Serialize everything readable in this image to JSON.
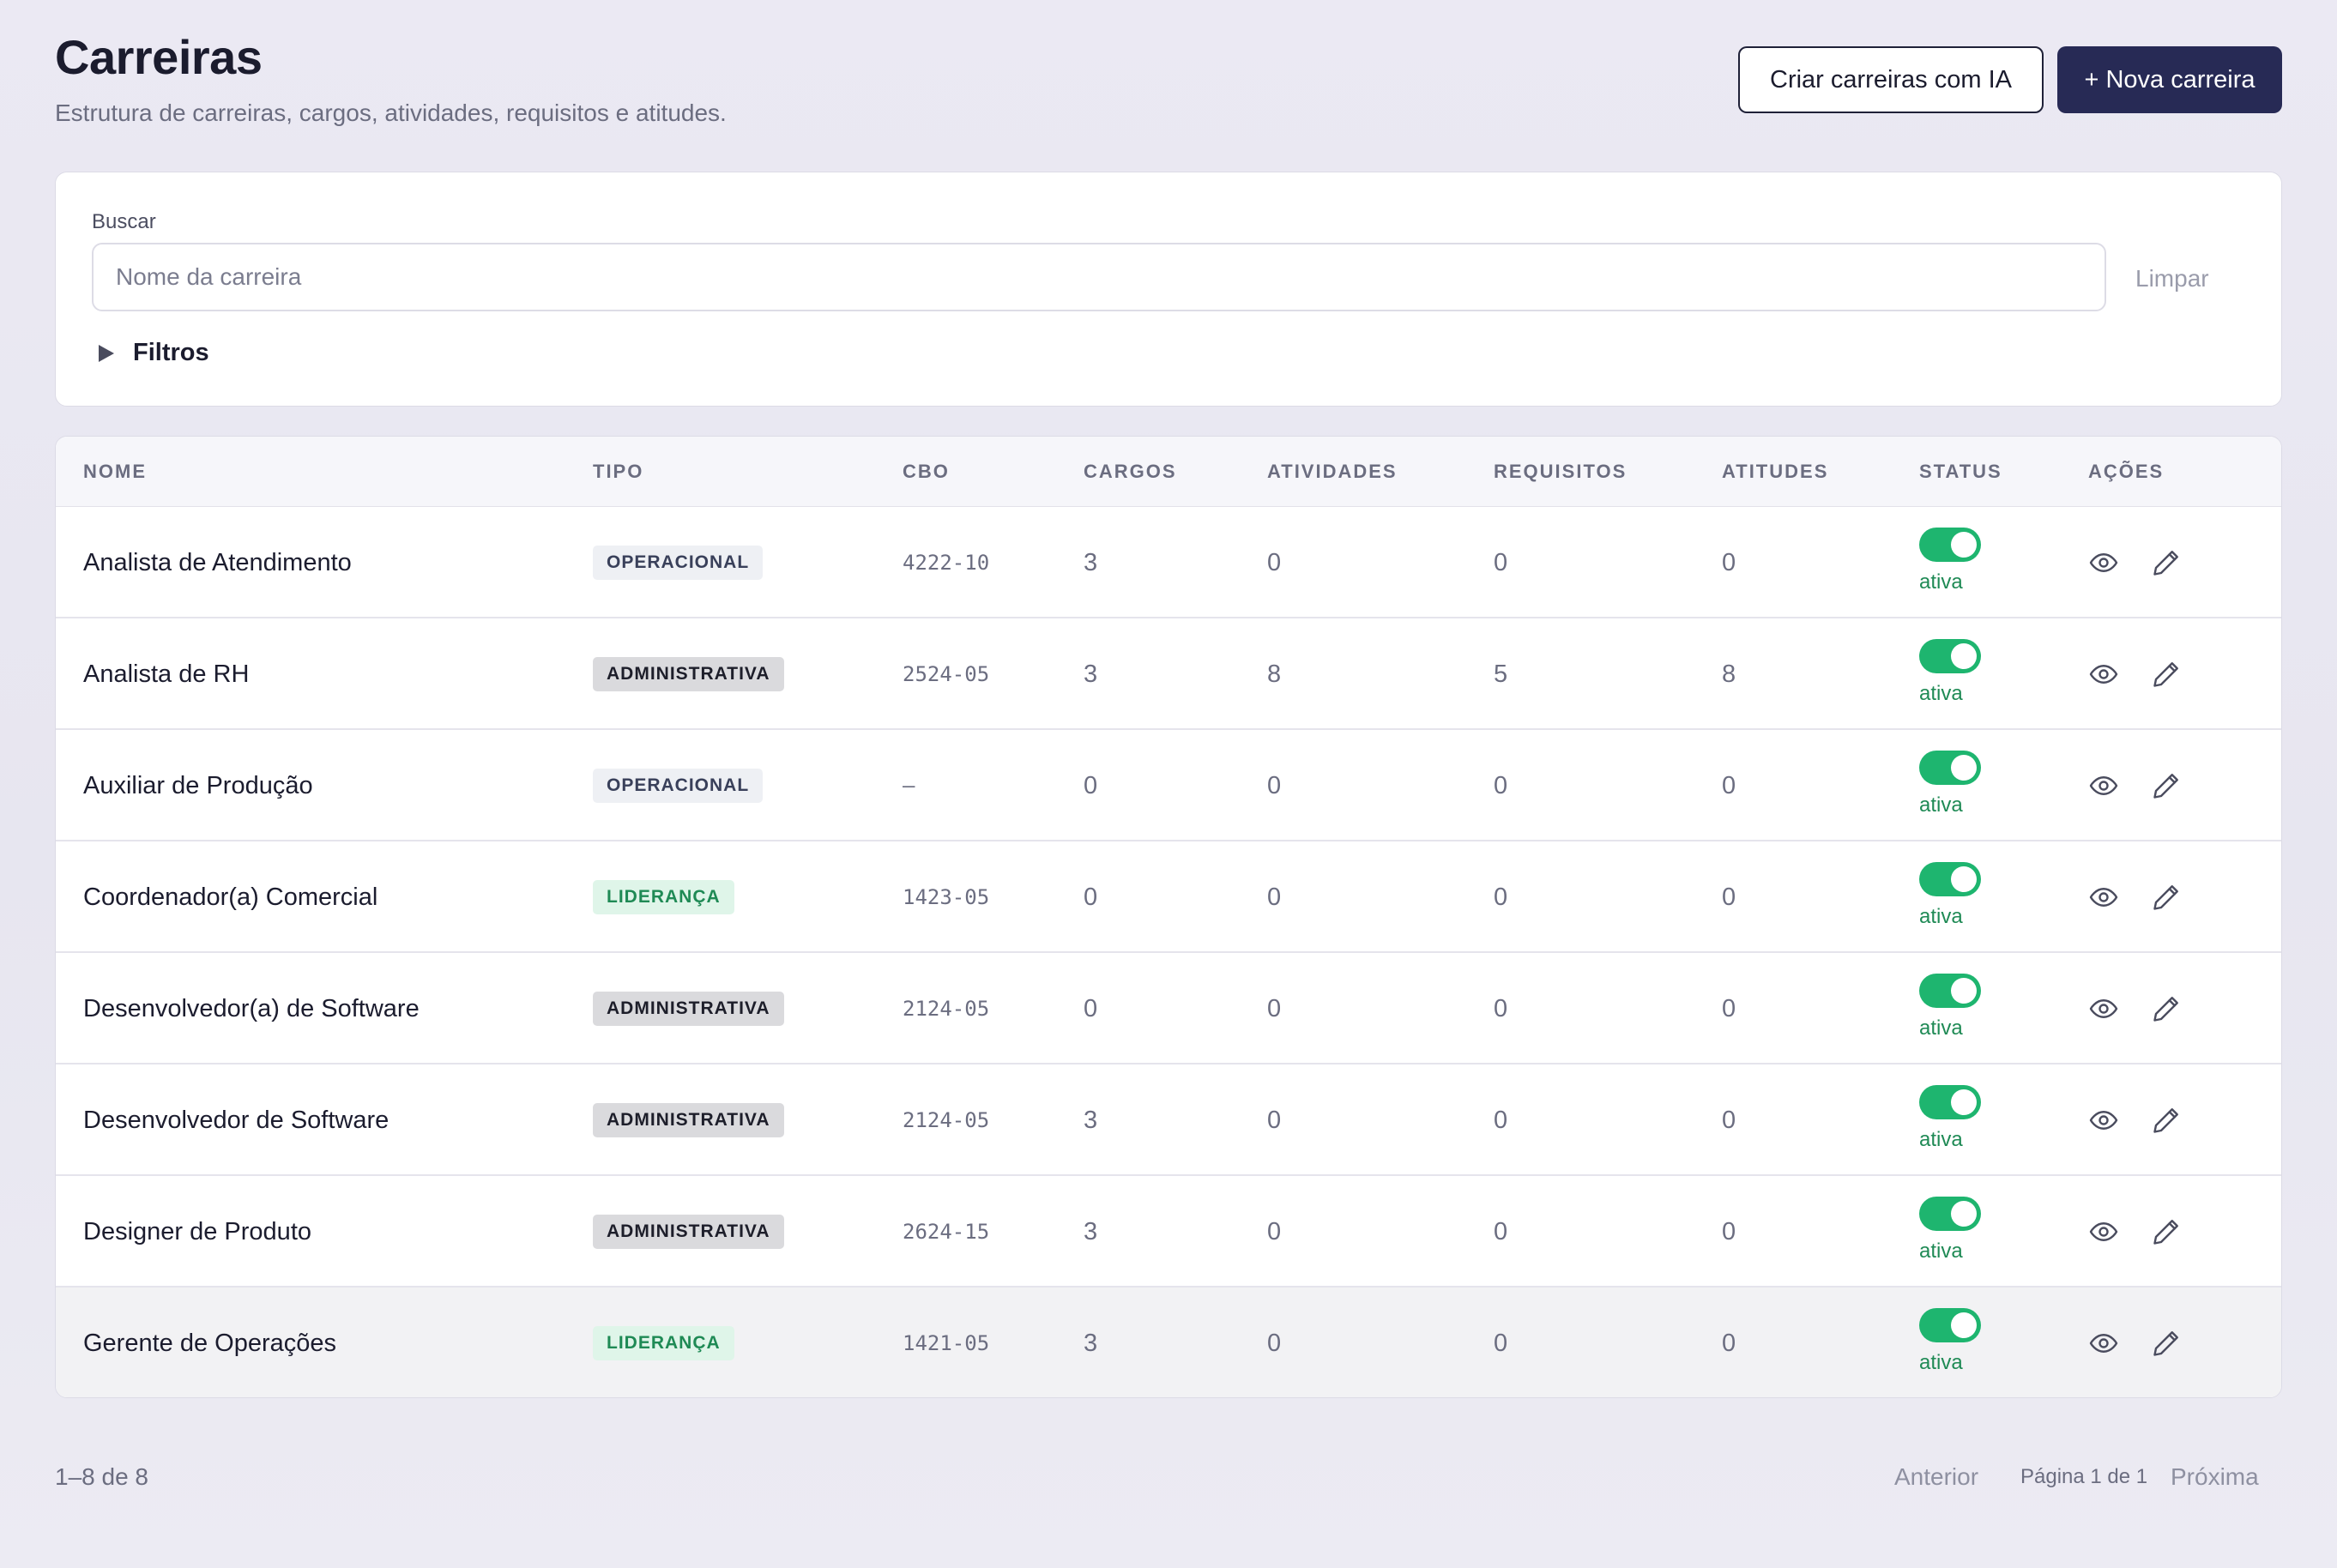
{
  "header": {
    "title": "Carreiras",
    "subtitle": "Estrutura de carreiras, cargos, atividades, requisitos e atitudes.",
    "ai_button_label": "Criar carreiras com IA",
    "new_button_label": "+ Nova carreira"
  },
  "filters": {
    "search_label": "Buscar",
    "search_placeholder": "Nome da carreira",
    "search_value": "",
    "clear_label": "Limpar",
    "filters_label": "Filtros",
    "filters_icon": "caret-right-icon"
  },
  "table": {
    "columns": [
      "NOME",
      "TIPO",
      "CBO",
      "CARGOS",
      "ATIVIDADES",
      "REQUISITOS",
      "ATITUDES",
      "STATUS",
      "AÇÕES"
    ],
    "rows": [
      {
        "name": "Analista de Atendimento",
        "tipo": "OPERACIONAL",
        "tipo_kind": "operacional",
        "cbo": "4222-10",
        "cargos": "3",
        "atividades": "0",
        "requisitos": "0",
        "atitudes": "0",
        "status": "ativa"
      },
      {
        "name": "Analista de RH",
        "tipo": "ADMINISTRATIVA",
        "tipo_kind": "administrativa",
        "cbo": "2524-05",
        "cargos": "3",
        "atividades": "8",
        "requisitos": "5",
        "atitudes": "8",
        "status": "ativa"
      },
      {
        "name": "Auxiliar de Produção",
        "tipo": "OPERACIONAL",
        "tipo_kind": "operacional",
        "cbo": "—",
        "cargos": "0",
        "atividades": "0",
        "requisitos": "0",
        "atitudes": "0",
        "status": "ativa"
      },
      {
        "name": "Coordenador(a) Comercial",
        "tipo": "LIDERANÇA",
        "tipo_kind": "lideranca",
        "cbo": "1423-05",
        "cargos": "0",
        "atividades": "0",
        "requisitos": "0",
        "atitudes": "0",
        "status": "ativa"
      },
      {
        "name": "Desenvolvedor(a) de Software",
        "tipo": "ADMINISTRATIVA",
        "tipo_kind": "administrativa",
        "cbo": "2124-05",
        "cargos": "0",
        "atividades": "0",
        "requisitos": "0",
        "atitudes": "0",
        "status": "ativa"
      },
      {
        "name": "Desenvolvedor de Software",
        "tipo": "ADMINISTRATIVA",
        "tipo_kind": "administrativa",
        "cbo": "2124-05",
        "cargos": "3",
        "atividades": "0",
        "requisitos": "0",
        "atitudes": "0",
        "status": "ativa"
      },
      {
        "name": "Designer de Produto",
        "tipo": "ADMINISTRATIVA",
        "tipo_kind": "administrativa",
        "cbo": "2624-15",
        "cargos": "3",
        "atividades": "0",
        "requisitos": "0",
        "atitudes": "0",
        "status": "ativa"
      },
      {
        "name": "Gerente de Operações",
        "tipo": "LIDERANÇA",
        "tipo_kind": "lideranca",
        "cbo": "1421-05",
        "cargos": "3",
        "atividades": "0",
        "requisitos": "0",
        "atitudes": "0",
        "status": "ativa"
      }
    ],
    "action_icons": [
      "eye-icon",
      "pencil-icon"
    ]
  },
  "pagination": {
    "range": "1–8 de 8",
    "prev_label": "Anterior",
    "page_label": "Página 1 de 1",
    "next_label": "Próxima"
  },
  "colors": {
    "primary": "#272a55",
    "toggle_on": "#1eb56f",
    "status_text": "#1f8a55",
    "leadership_badge_bg": "#dff5e9"
  }
}
